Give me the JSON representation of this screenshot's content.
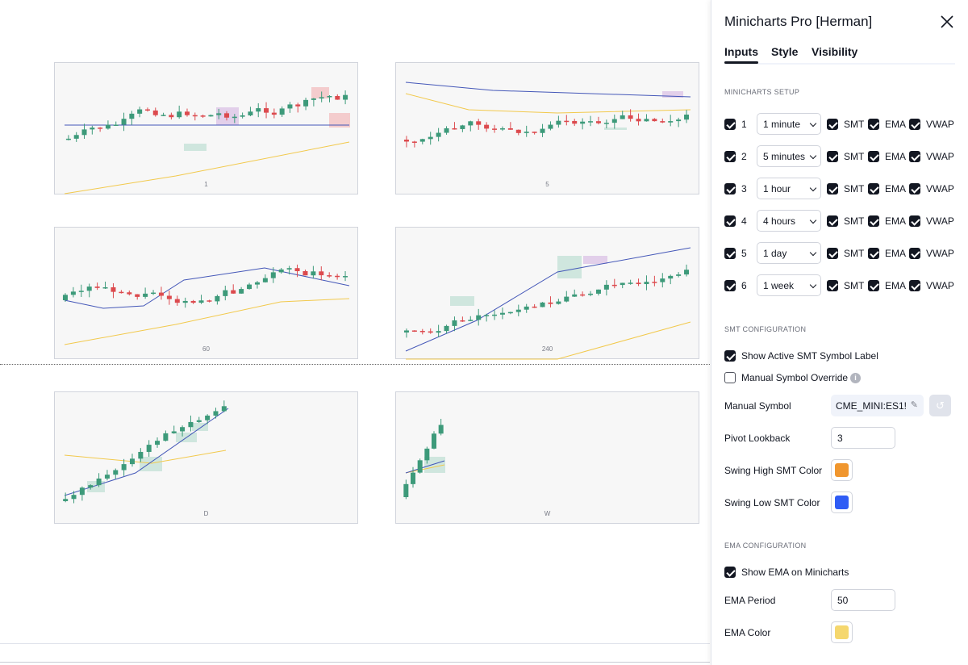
{
  "panel": {
    "title": "Minicharts Pro [Herman]",
    "tabs": [
      {
        "label": "Inputs",
        "active": true
      },
      {
        "label": "Style",
        "active": false
      },
      {
        "label": "Visibility",
        "active": false
      }
    ],
    "minicharts_setup": {
      "title": "MINICHARTS SETUP",
      "rows": [
        {
          "index": "1",
          "enabled": true,
          "timeframe": "1 minute",
          "smt": true,
          "ema": true,
          "vwap": true
        },
        {
          "index": "2",
          "enabled": true,
          "timeframe": "5 minutes",
          "smt": true,
          "ema": true,
          "vwap": true
        },
        {
          "index": "3",
          "enabled": true,
          "timeframe": "1 hour",
          "smt": true,
          "ema": true,
          "vwap": true
        },
        {
          "index": "4",
          "enabled": true,
          "timeframe": "4 hours",
          "smt": true,
          "ema": true,
          "vwap": true
        },
        {
          "index": "5",
          "enabled": true,
          "timeframe": "1 day",
          "smt": true,
          "ema": true,
          "vwap": true
        },
        {
          "index": "6",
          "enabled": true,
          "timeframe": "1 week",
          "smt": true,
          "ema": true,
          "vwap": true
        }
      ],
      "smt_label": "SMT",
      "ema_label": "EMA",
      "vwap_label": "VWAP"
    },
    "smt_config": {
      "title": "SMT CONFIGURATION",
      "show_active_label": "Show Active SMT Symbol Label",
      "show_active_checked": true,
      "manual_override_label": "Manual Symbol Override",
      "manual_override_checked": false,
      "manual_symbol_label": "Manual Symbol",
      "manual_symbol_value": "CME_MINI:ES1!",
      "pivot_lookback_label": "Pivot Lookback",
      "pivot_lookback_value": "3",
      "swing_high_label": "Swing High SMT Color",
      "swing_high_color": "#f0962e",
      "swing_low_label": "Swing Low SMT Color",
      "swing_low_color": "#2f5cf5"
    },
    "ema_config": {
      "title": "EMA CONFIGURATION",
      "show_ema_label": "Show EMA on Minicharts",
      "show_ema_checked": true,
      "ema_period_label": "EMA Period",
      "ema_period_value": "50",
      "ema_color_label": "EMA Color",
      "ema_color": "#f5d76e"
    }
  },
  "minicharts": [
    {
      "label": "1"
    },
    {
      "label": "5"
    },
    {
      "label": "60"
    },
    {
      "label": "240"
    },
    {
      "label": "D"
    },
    {
      "label": "W"
    }
  ],
  "colors": {
    "up": "#3d9a7a",
    "down": "#dc4a4e",
    "ema_line": "#f2c94c",
    "vwap_line": "#4457b8"
  }
}
